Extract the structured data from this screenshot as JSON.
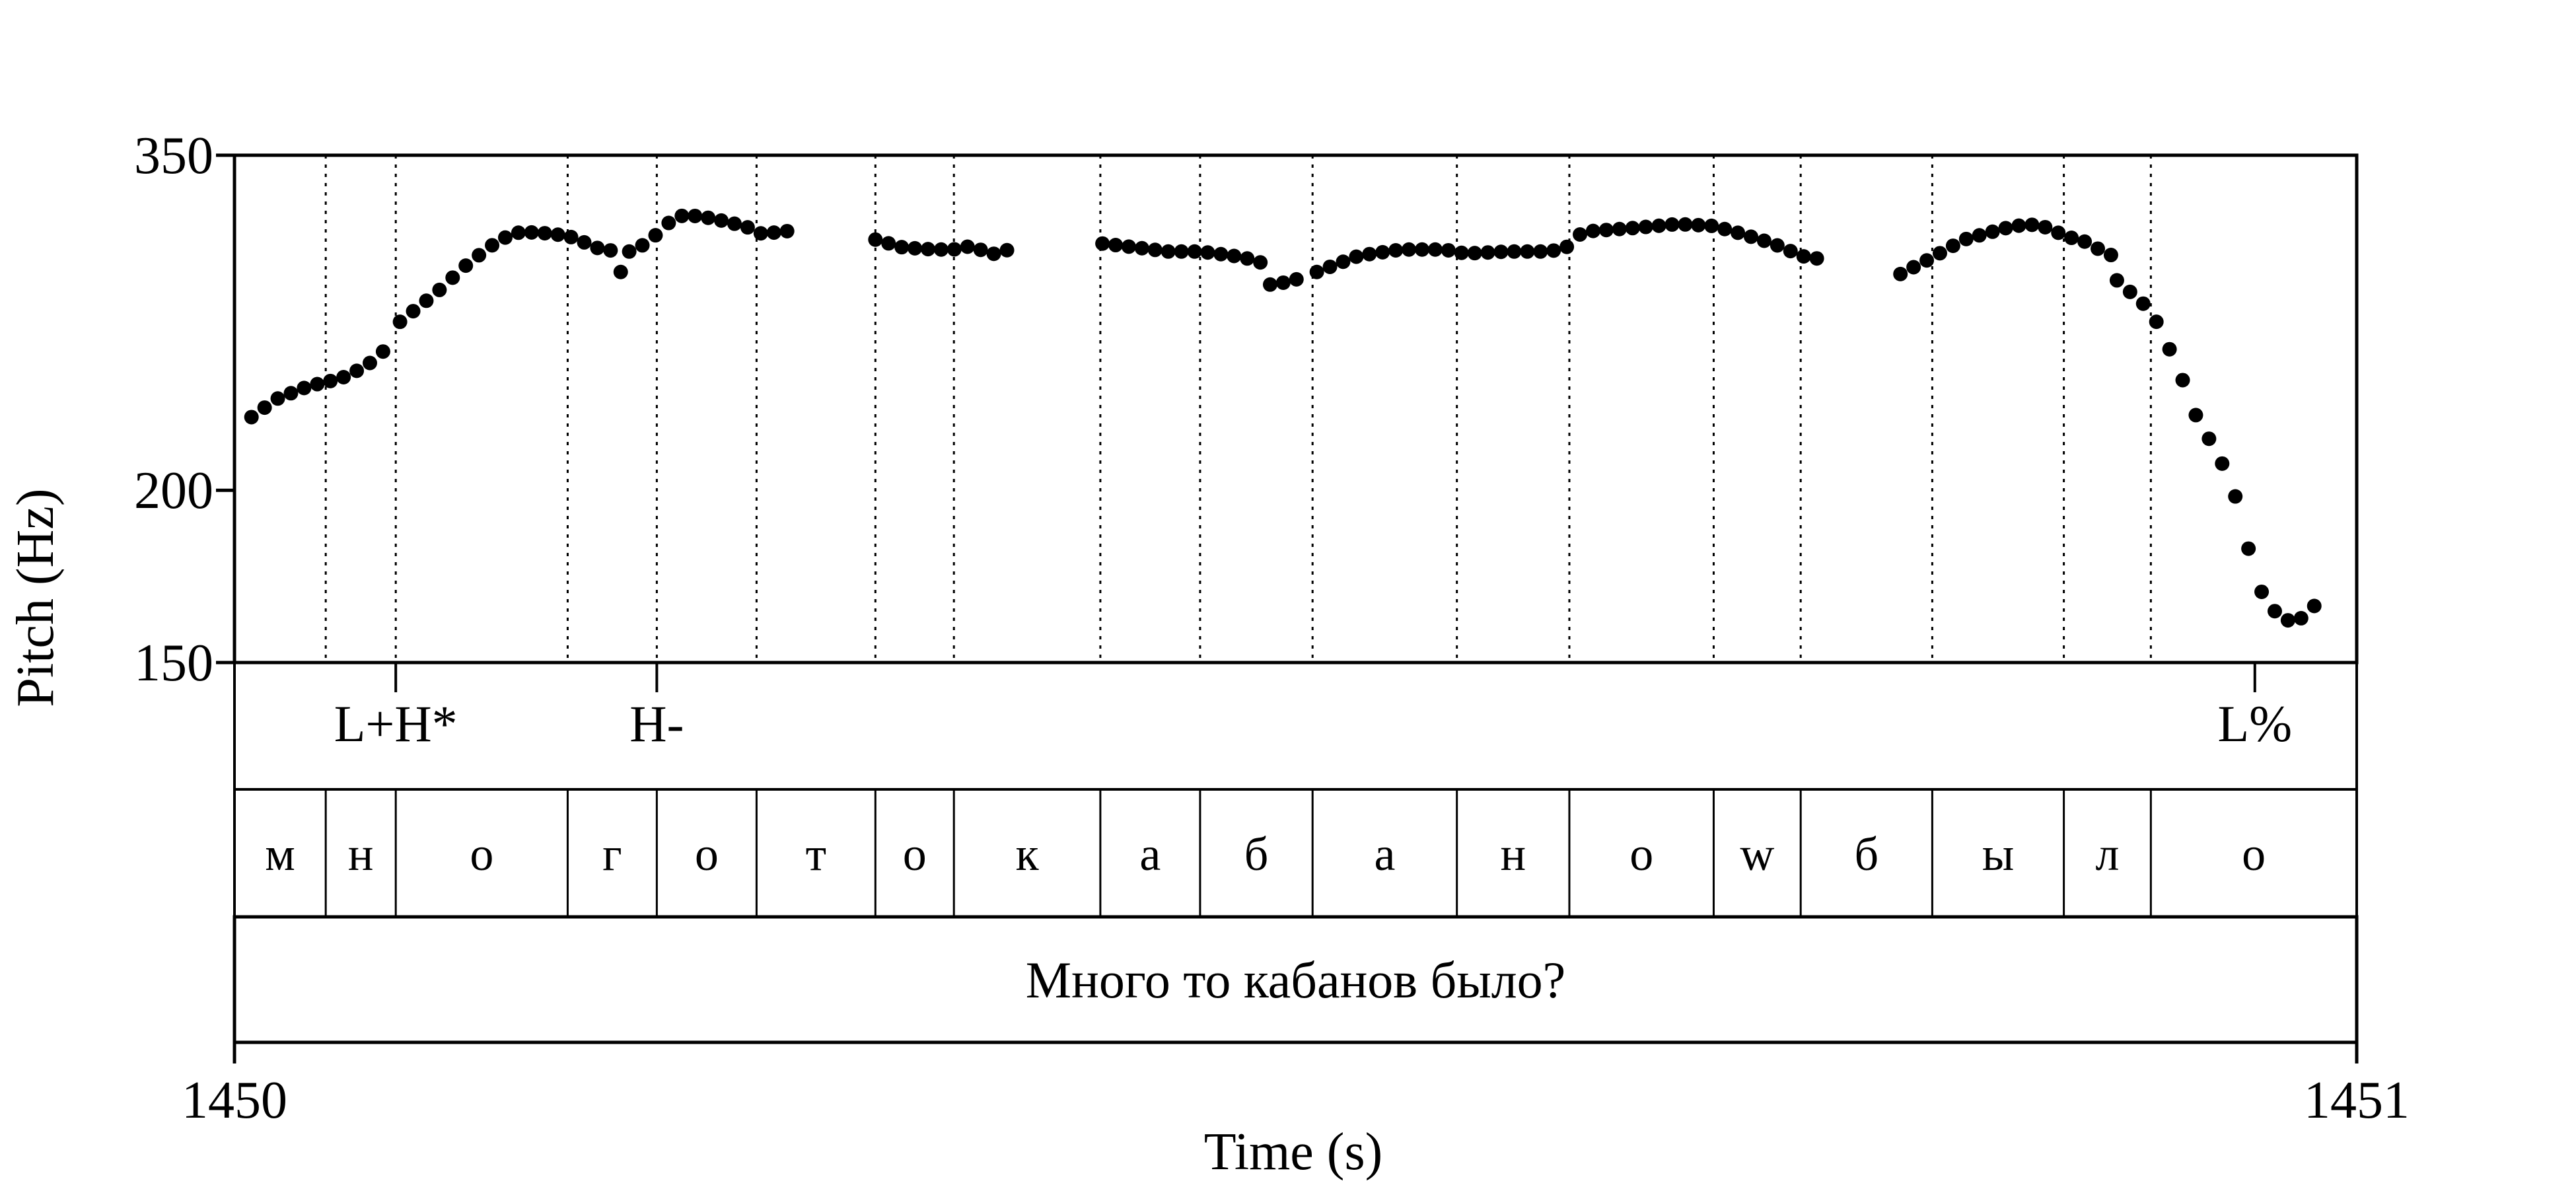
{
  "chart_data": {
    "type": "scatter",
    "xlabel": "Time (s)",
    "ylabel": "Pitch (Hz)",
    "xlim": [
      1450,
      1451
    ],
    "ylim": [
      150,
      350
    ],
    "y_scale": "log",
    "x_ticks": [
      "1450",
      "1451"
    ],
    "y_ticks": [
      "150",
      "200",
      "350"
    ],
    "tones": [
      {
        "label": "L+H*",
        "t": 0.076
      },
      {
        "label": "H-",
        "t": 0.199
      },
      {
        "label": "L%",
        "t": 0.952
      }
    ],
    "segments": [
      {
        "label": "м",
        "start": 0.0,
        "end": 0.043
      },
      {
        "label": "н",
        "start": 0.043,
        "end": 0.076
      },
      {
        "label": "о",
        "start": 0.076,
        "end": 0.157
      },
      {
        "label": "г",
        "start": 0.157,
        "end": 0.199
      },
      {
        "label": "о",
        "start": 0.199,
        "end": 0.246
      },
      {
        "label": "т",
        "start": 0.246,
        "end": 0.302
      },
      {
        "label": "о",
        "start": 0.302,
        "end": 0.339
      },
      {
        "label": "к",
        "start": 0.339,
        "end": 0.408
      },
      {
        "label": "а",
        "start": 0.408,
        "end": 0.455
      },
      {
        "label": "б",
        "start": 0.455,
        "end": 0.508
      },
      {
        "label": "а",
        "start": 0.508,
        "end": 0.576
      },
      {
        "label": "н",
        "start": 0.576,
        "end": 0.629
      },
      {
        "label": "о",
        "start": 0.629,
        "end": 0.697
      },
      {
        "label": "w",
        "start": 0.697,
        "end": 0.738
      },
      {
        "label": "б",
        "start": 0.738,
        "end": 0.8
      },
      {
        "label": "ы",
        "start": 0.8,
        "end": 0.862
      },
      {
        "label": "л",
        "start": 0.862,
        "end": 0.903
      },
      {
        "label": "о",
        "start": 0.903,
        "end": 1.0
      }
    ],
    "sentence": "Много то кабанов было?",
    "pitch_runs": [
      {
        "t0": 0.008,
        "t1": 0.075,
        "pts": [
          [
            0.008,
            226
          ],
          [
            0.02,
            233
          ],
          [
            0.035,
            238
          ],
          [
            0.05,
            241
          ],
          [
            0.062,
            246
          ],
          [
            0.075,
            256
          ]
        ]
      },
      {
        "t0": 0.078,
        "t1": 0.18,
        "pts": [
          [
            0.078,
            265
          ],
          [
            0.095,
            278
          ],
          [
            0.11,
            292
          ],
          [
            0.125,
            304
          ],
          [
            0.135,
            308
          ],
          [
            0.15,
            307
          ],
          [
            0.16,
            305
          ],
          [
            0.17,
            300
          ],
          [
            0.18,
            298
          ]
        ]
      },
      {
        "t0": 0.182,
        "t1": 0.182,
        "pts": [
          [
            0.182,
            288
          ]
        ]
      },
      {
        "t0": 0.186,
        "t1": 0.265,
        "pts": [
          [
            0.186,
            298
          ],
          [
            0.196,
            303
          ],
          [
            0.202,
            311
          ],
          [
            0.212,
            317
          ],
          [
            0.225,
            315
          ],
          [
            0.24,
            311
          ],
          [
            0.245,
            309
          ],
          [
            0.25,
            306
          ],
          [
            0.258,
            309
          ],
          [
            0.265,
            307
          ]
        ]
      },
      {
        "t0": 0.302,
        "t1": 0.366,
        "pts": [
          [
            0.302,
            304
          ],
          [
            0.315,
            300
          ],
          [
            0.33,
            299
          ],
          [
            0.339,
            299
          ],
          [
            0.343,
            301
          ],
          [
            0.355,
            298
          ],
          [
            0.36,
            296
          ],
          [
            0.366,
            300
          ]
        ]
      },
      {
        "t0": 0.409,
        "t1": 0.506,
        "pts": [
          [
            0.409,
            302
          ],
          [
            0.425,
            300
          ],
          [
            0.44,
            298
          ],
          [
            0.455,
            298
          ],
          [
            0.47,
            296
          ],
          [
            0.48,
            294
          ],
          [
            0.485,
            292
          ]
        ]
      },
      {
        "t0": 0.488,
        "t1": 0.506,
        "pts": [
          [
            0.488,
            282
          ],
          [
            0.495,
            283
          ],
          [
            0.506,
            286
          ]
        ]
      },
      {
        "t0": 0.51,
        "t1": 0.75,
        "pts": [
          [
            0.51,
            288
          ],
          [
            0.53,
            296
          ],
          [
            0.55,
            299
          ],
          [
            0.57,
            299
          ],
          [
            0.58,
            297
          ],
          [
            0.6,
            298
          ],
          [
            0.62,
            298
          ],
          [
            0.63,
            301
          ],
          [
            0.635,
            308
          ],
          [
            0.66,
            310
          ],
          [
            0.68,
            312
          ],
          [
            0.697,
            311
          ],
          [
            0.71,
            307
          ],
          [
            0.725,
            302
          ],
          [
            0.738,
            296
          ],
          [
            0.745,
            294
          ],
          [
            0.75,
            299
          ]
        ]
      },
      {
        "t0": 0.785,
        "t1": 0.89,
        "pts": [
          [
            0.785,
            287
          ],
          [
            0.8,
            295
          ],
          [
            0.815,
            304
          ],
          [
            0.835,
            310
          ],
          [
            0.845,
            312
          ],
          [
            0.855,
            310
          ],
          [
            0.862,
            306
          ],
          [
            0.875,
            302
          ],
          [
            0.882,
            296
          ],
          [
            0.89,
            297
          ]
        ]
      },
      {
        "t0": 0.887,
        "t1": 1.0,
        "pts": [
          [
            0.887,
            284
          ],
          [
            0.895,
            277
          ],
          [
            0.903,
            270
          ],
          [
            0.915,
            247
          ],
          [
            0.925,
            225
          ],
          [
            0.935,
            212
          ],
          [
            0.945,
            194
          ],
          [
            0.952,
            172
          ],
          [
            0.96,
            164
          ],
          [
            0.965,
            162
          ],
          [
            0.97,
            160
          ],
          [
            0.975,
            162
          ],
          [
            0.982,
            166
          ]
        ]
      }
    ]
  }
}
